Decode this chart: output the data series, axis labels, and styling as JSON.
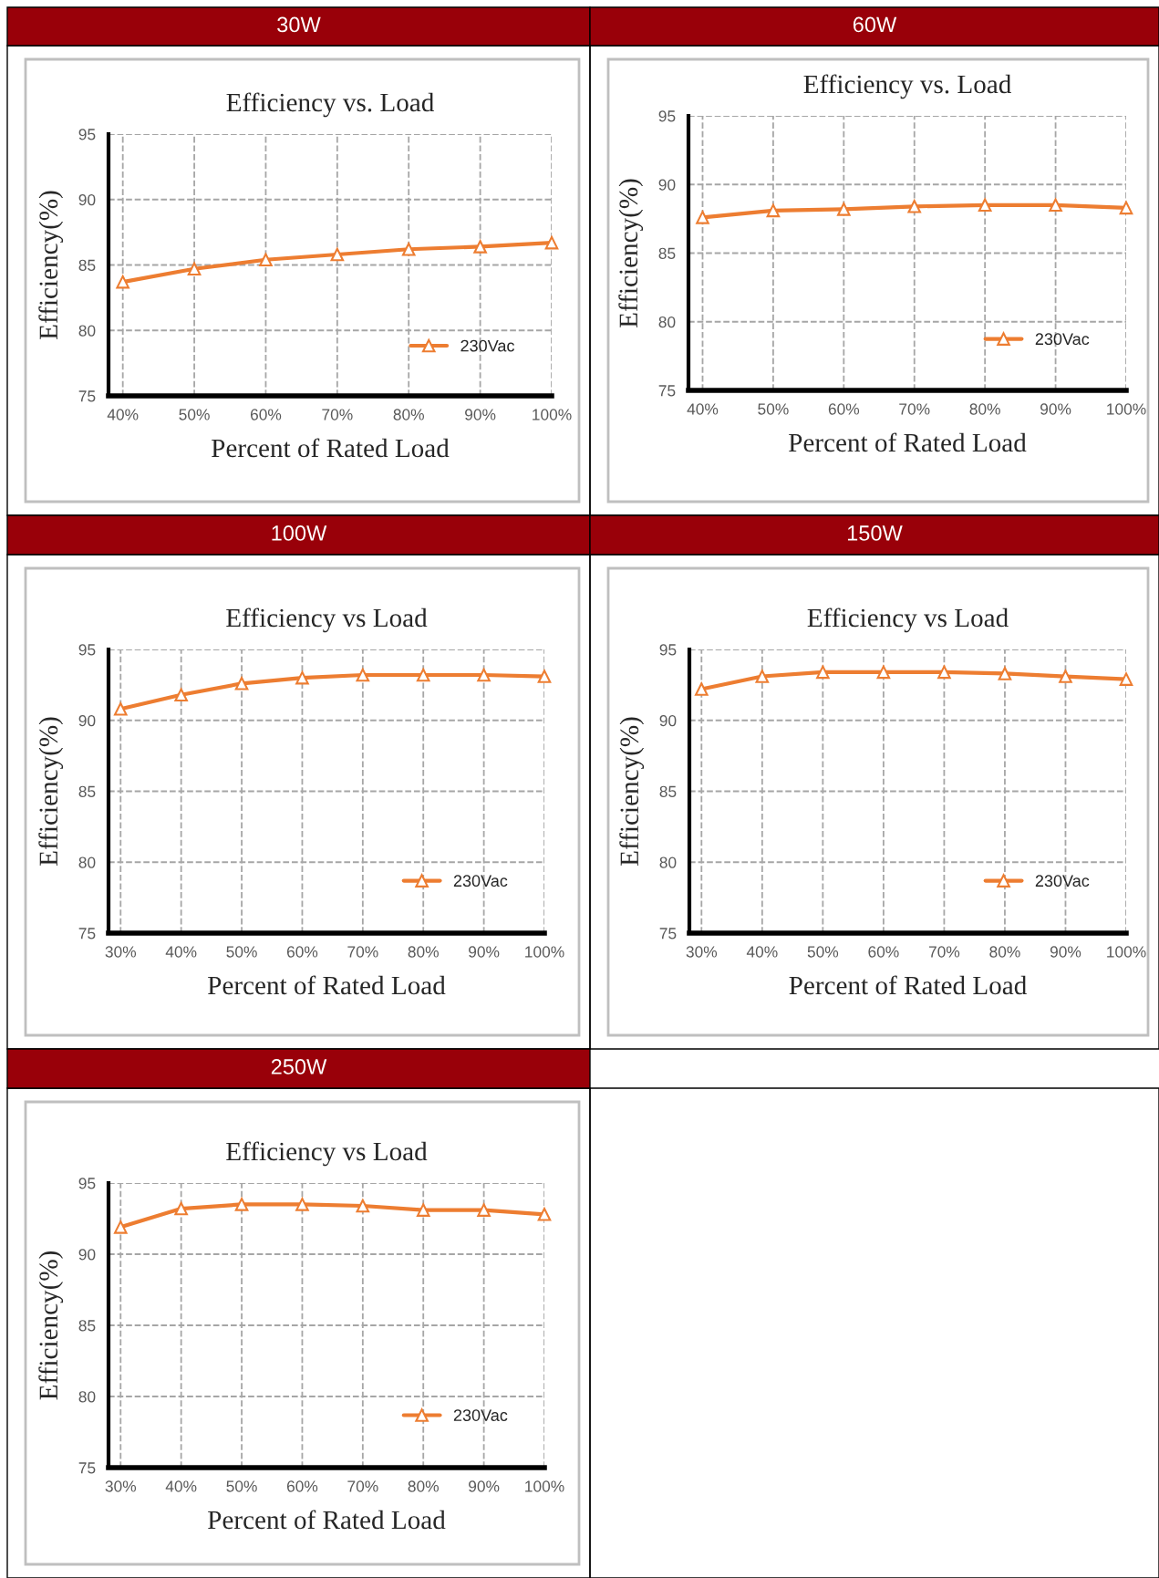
{
  "chart_data": [
    {
      "type": "line",
      "title": "30W",
      "subtitle": "Efficiency vs. Load",
      "xlabel": "Percent of Rated Load",
      "ylabel": "Efficiency(%)",
      "categories": [
        "40%",
        "50%",
        "60%",
        "70%",
        "80%",
        "90%",
        "100%"
      ],
      "series": [
        {
          "name": "230Vac",
          "color": "#ed7d31",
          "values": [
            83.7,
            84.7,
            85.4,
            85.8,
            86.2,
            86.4,
            86.7
          ]
        }
      ],
      "ylim": [
        75,
        95
      ],
      "yticks": [
        75,
        80,
        85,
        90,
        95
      ],
      "grid": true,
      "legend": "bottom right",
      "marker": "triangle",
      "line_style": "solid"
    },
    {
      "type": "line",
      "title": "60W",
      "subtitle": "Efficiency vs. Load",
      "xlabel": "Percent of Rated Load",
      "ylabel": "Efficiency(%)",
      "categories": [
        "40%",
        "50%",
        "60%",
        "70%",
        "80%",
        "90%",
        "100%"
      ],
      "series": [
        {
          "name": "230Vac",
          "color": "#ed7d31",
          "values": [
            87.6,
            88.1,
            88.2,
            88.4,
            88.5,
            88.5,
            88.3
          ]
        }
      ],
      "ylim": [
        75,
        95
      ],
      "yticks": [
        75,
        80,
        85,
        90,
        95
      ],
      "grid": true,
      "legend": "bottom right",
      "marker": "triangle",
      "line_style": "solid"
    },
    {
      "type": "line",
      "title": "100W",
      "subtitle": "Efficiency vs Load",
      "xlabel": "Percent of Rated Load",
      "ylabel": "Efficiency(%)",
      "categories": [
        "30%",
        "40%",
        "50%",
        "60%",
        "70%",
        "80%",
        "90%",
        "100%"
      ],
      "series": [
        {
          "name": "230Vac",
          "color": "#ed7d31",
          "values": [
            90.8,
            91.8,
            92.6,
            93.0,
            93.2,
            93.2,
            93.2,
            93.1
          ]
        }
      ],
      "ylim": [
        75,
        95
      ],
      "yticks": [
        75,
        80,
        85,
        90,
        95
      ],
      "grid": true,
      "legend": "bottom right",
      "marker": "triangle",
      "line_style": "solid"
    },
    {
      "type": "line",
      "title": "150W",
      "subtitle": "Efficiency vs Load",
      "xlabel": "Percent of Rated Load",
      "ylabel": "Efficiency(%)",
      "categories": [
        "30%",
        "40%",
        "50%",
        "60%",
        "70%",
        "80%",
        "90%",
        "100%"
      ],
      "series": [
        {
          "name": "230Vac",
          "color": "#ed7d31",
          "values": [
            92.2,
            93.1,
            93.4,
            93.4,
            93.4,
            93.3,
            93.1,
            92.9
          ]
        }
      ],
      "ylim": [
        75,
        95
      ],
      "yticks": [
        75,
        80,
        85,
        90,
        95
      ],
      "grid": true,
      "legend": "bottom right",
      "marker": "triangle",
      "line_style": "solid"
    },
    {
      "type": "line",
      "title": "250W",
      "subtitle": "Efficiency vs Load",
      "xlabel": "Percent of Rated Load",
      "ylabel": "Efficiency(%)",
      "categories": [
        "30%",
        "40%",
        "50%",
        "60%",
        "70%",
        "80%",
        "90%",
        "100%"
      ],
      "series": [
        {
          "name": "230Vac",
          "color": "#ed7d31",
          "values": [
            91.9,
            93.2,
            93.5,
            93.5,
            93.4,
            93.1,
            93.1,
            92.8
          ]
        }
      ],
      "ylim": [
        75,
        95
      ],
      "yticks": [
        75,
        80,
        85,
        90,
        95
      ],
      "grid": true,
      "legend": "bottom right",
      "marker": "triangle",
      "line_style": "solid"
    }
  ]
}
